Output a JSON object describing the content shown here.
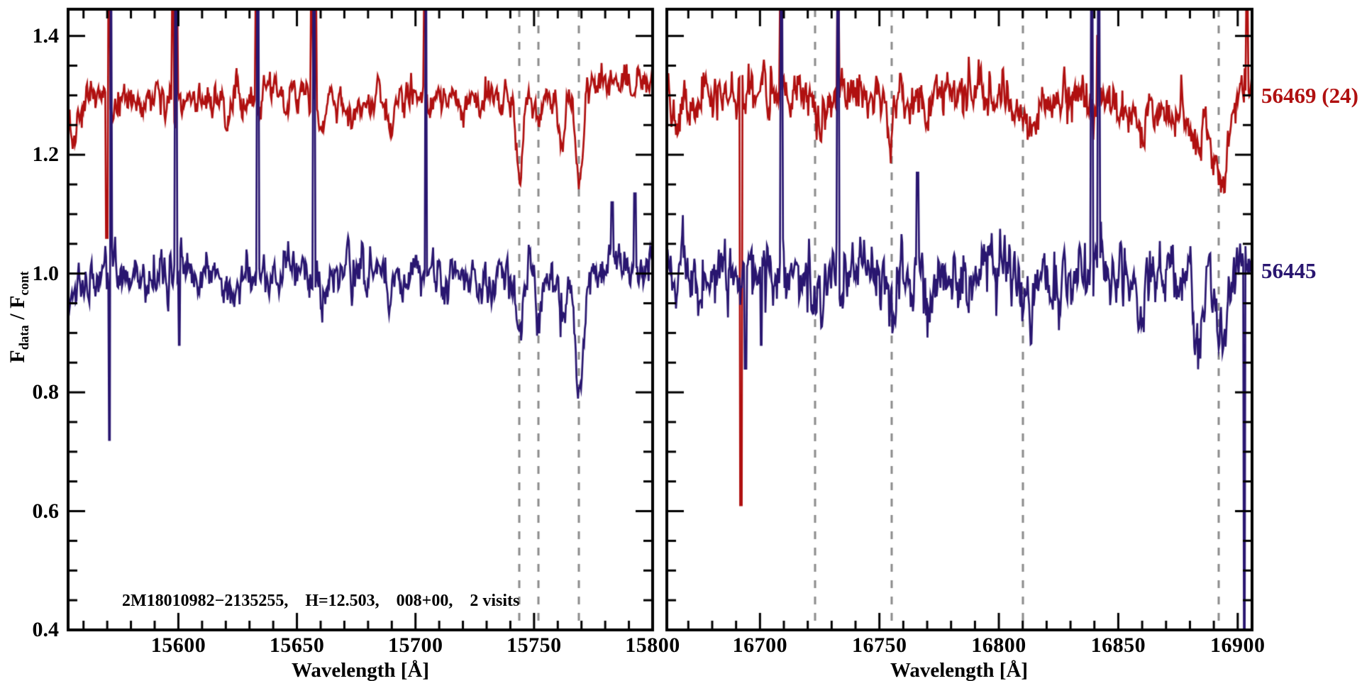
{
  "chart_data": {
    "type": "line",
    "title": "",
    "ylabel": "F_data / F_cont",
    "ylabel_parts": [
      {
        "t": "F"
      },
      {
        "t": "data"
      },
      {
        "t": " / F"
      },
      {
        "t": "cont"
      }
    ],
    "ylim": [
      0.4,
      1.445
    ],
    "yticks": [
      0.4,
      0.6,
      0.8,
      1.0,
      1.2,
      1.4
    ],
    "ytick_labels": [
      "0.4",
      "0.6",
      "0.8",
      "1.0",
      "1.2",
      "1.4"
    ],
    "y_minor_step": 0.05,
    "grid": false,
    "annotation": "2M18010982−2135255,    H=12.503,    008+00,    2 visits",
    "series_labels": [
      {
        "text": "56469 (24)",
        "color": "#b01010",
        "at_flux_level": 1.3
      },
      {
        "text": "56445",
        "color": "#291670",
        "at_flux_level": 1.0
      }
    ],
    "dashed_line_color": "#8c8c8c",
    "panels": [
      {
        "xlabel": "Wavelength [Å]",
        "xlim": [
          15553.5,
          15800
        ],
        "xticks": [
          15600,
          15650,
          15700,
          15750,
          15800
        ],
        "xtick_labels": [
          "15600",
          "15650",
          "15700",
          "15750",
          "15800"
        ],
        "x_minor_step": 10,
        "dashed_lines": [
          15743.7,
          15751.8,
          15768.8
        ],
        "series": [
          {
            "name": "56469 (24)",
            "color": "#b01010",
            "continuum": 1.3,
            "noise_sigma": 0.015,
            "baseline": [
              [
                15553.5,
                1.265
              ],
              [
                15562,
                1.29
              ],
              [
                15575,
                1.295
              ],
              [
                15590,
                1.3
              ],
              [
                15615,
                1.295
              ],
              [
                15635,
                1.3
              ],
              [
                15660,
                1.295
              ],
              [
                15680,
                1.285
              ],
              [
                15695,
                1.3
              ],
              [
                15715,
                1.3
              ],
              [
                15735,
                1.295
              ],
              [
                15755,
                1.3
              ],
              [
                15772,
                1.31
              ],
              [
                15785,
                1.325
              ],
              [
                15795,
                1.315
              ],
              [
                15800,
                1.31
              ]
            ],
            "absorption": [
              [
                15556,
                1.2,
                0.05
              ],
              [
                15571.8,
                0.8,
                0.04
              ],
              [
                15585,
                1.0,
                0.035
              ],
              [
                15598,
                0.8,
                0.03
              ],
              [
                15620,
                1.0,
                0.04
              ],
              [
                15634.5,
                0.8,
                0.03
              ],
              [
                15645,
                1.0,
                0.03
              ],
              [
                15661,
                1.2,
                0.05
              ],
              [
                15673,
                1.0,
                0.035
              ],
              [
                15689,
                1.3,
                0.05
              ],
              [
                15705.5,
                0.8,
                0.03
              ],
              [
                15720,
                1.0,
                0.03
              ],
              [
                15744,
                1.1,
                0.145
              ],
              [
                15752,
                0.9,
                0.06
              ],
              [
                15761.5,
                1.1,
                0.095
              ],
              [
                15769,
                1.4,
                0.165
              ]
            ],
            "spikes_up": [
              15570.7,
              15597.7,
              15599.3,
              15632.8,
              15656.2,
              15658.0,
              15703.8
            ],
            "spikes_to": [
              [
                15569.8,
                1.06
              ]
            ]
          },
          {
            "name": "56445",
            "color": "#291670",
            "continuum": 1.0,
            "noise_sigma": 0.021,
            "baseline": [
              [
                15553.5,
                0.98
              ],
              [
                15570,
                1.0
              ],
              [
                15650,
                1.0
              ],
              [
                15730,
                0.99
              ],
              [
                15800,
                1.01
              ]
            ],
            "absorption": [
              [
                15620,
                1.0,
                0.03
              ],
              [
                15661,
                1.2,
                0.045
              ],
              [
                15689,
                1.2,
                0.035
              ],
              [
                15730,
                1.0,
                0.04
              ],
              [
                15744,
                1.2,
                0.1
              ],
              [
                15752,
                1.0,
                0.085
              ],
              [
                15762,
                1.2,
                0.08
              ],
              [
                15769,
                1.6,
                0.2
              ]
            ],
            "spikes_up": [
              15571.6,
              15599.0,
              15633.4,
              15657.2,
              15704.4
            ],
            "spikes_to": [
              [
                15570.9,
                0.72
              ],
              [
                15600.3,
                0.88
              ],
              [
                15783,
                1.12
              ],
              [
                15792.5,
                1.135
              ]
            ]
          }
        ]
      },
      {
        "xlabel": "Wavelength [Å]",
        "xlim": [
          16661,
          16906
        ],
        "xticks": [
          16700,
          16750,
          16800,
          16850,
          16900
        ],
        "xtick_labels": [
          "16700",
          "16750",
          "16800",
          "16850",
          "16900"
        ],
        "x_minor_step": 10,
        "dashed_lines": [
          16723,
          16755,
          16810,
          16892
        ],
        "series": [
          {
            "name": "56469 (24)",
            "color": "#b01010",
            "continuum": 1.3,
            "noise_sigma": 0.021,
            "baseline": [
              [
                16661,
                1.29
              ],
              [
                16675,
                1.3
              ],
              [
                16700,
                1.305
              ],
              [
                16730,
                1.3
              ],
              [
                16748,
                1.29
              ],
              [
                16765,
                1.295
              ],
              [
                16788,
                1.315
              ],
              [
                16800,
                1.3
              ],
              [
                16815,
                1.29
              ],
              [
                16832,
                1.3
              ],
              [
                16850,
                1.285
              ],
              [
                16866,
                1.27
              ],
              [
                16878,
                1.275
              ],
              [
                16886,
                1.25
              ],
              [
                16893,
                1.245
              ],
              [
                16899,
                1.28
              ],
              [
                16906,
                1.34
              ]
            ],
            "absorption": [
              [
                16666,
                1.2,
                0.05
              ],
              [
                16725,
                1.2,
                0.04
              ],
              [
                16755,
                1.5,
                0.05
              ],
              [
                16770,
                1.2,
                0.04
              ],
              [
                16812,
                2.5,
                0.055
              ],
              [
                16840,
                1.2,
                0.03
              ],
              [
                16860,
                1.5,
                0.04
              ],
              [
                16883,
                1.8,
                0.05
              ],
              [
                16893.5,
                2.0,
                0.12
              ]
            ],
            "spikes_up": [
              16708.8,
              16732.7,
              16903.9
            ],
            "spikes_to": [
              [
                16692,
                0.61
              ],
              [
                16841.5,
                1.4
              ]
            ]
          },
          {
            "name": "56445",
            "color": "#291670",
            "continuum": 1.0,
            "noise_sigma": 0.032,
            "baseline": [
              [
                16661,
                1.0
              ],
              [
                16700,
                0.995
              ],
              [
                16740,
                1.0
              ],
              [
                16770,
                0.99
              ],
              [
                16800,
                0.995
              ],
              [
                16830,
                1.005
              ],
              [
                16860,
                0.995
              ],
              [
                16885,
                0.99
              ],
              [
                16906,
                1.0
              ]
            ],
            "absorption": [
              [
                16725,
                1.5,
                0.05
              ],
              [
                16755,
                1.5,
                0.06
              ],
              [
                16770,
                1.2,
                0.05
              ],
              [
                16812,
                2.0,
                0.06
              ],
              [
                16860,
                1.5,
                0.07
              ],
              [
                16883,
                1.8,
                0.08
              ],
              [
                16893.5,
                1.8,
                0.09
              ]
            ],
            "spikes_up": [
              16708.9,
              16732.8,
              16838.8,
              16841.8
            ],
            "spikes_to": [
              [
                16694,
                0.84
              ],
              [
                16700.5,
                0.88
              ],
              [
                16766,
                1.17
              ],
              [
                16902.8,
                0.1
              ]
            ]
          }
        ]
      }
    ]
  }
}
